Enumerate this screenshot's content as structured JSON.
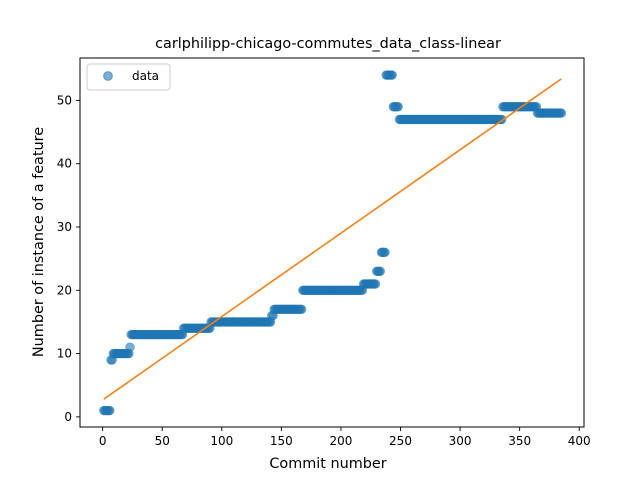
{
  "chart_data": {
    "type": "scatter",
    "title": "carlphilipp-chicago-commutes_data_class-linear",
    "xlabel": "Commit number",
    "ylabel": "Number of instance of a feature",
    "xlim": [
      -19,
      404
    ],
    "ylim": [
      -1.6,
      56.7
    ],
    "xticks": [
      0,
      50,
      100,
      150,
      200,
      250,
      300,
      350,
      400
    ],
    "yticks": [
      0,
      10,
      20,
      30,
      40,
      50
    ],
    "grid": false,
    "legend": {
      "placement": "upper-left",
      "entries": [
        "data"
      ]
    },
    "colors": {
      "data": "#1f77b4",
      "fit": "#ff7f0e"
    },
    "series": [
      {
        "name": "data",
        "kind": "scatter",
        "segments": [
          {
            "x_start": 1,
            "x_end": 6,
            "y": 1
          },
          {
            "x_start": 7,
            "x_end": 8,
            "y": 9
          },
          {
            "x_start": 9,
            "x_end": 22,
            "y": 10
          },
          {
            "x_start": 23,
            "x_end": 23,
            "y": 11
          },
          {
            "x_start": 24,
            "x_end": 67,
            "y": 13
          },
          {
            "x_start": 68,
            "x_end": 90,
            "y": 14
          },
          {
            "x_start": 91,
            "x_end": 141,
            "y": 15
          },
          {
            "x_start": 142,
            "x_end": 143,
            "y": 16
          },
          {
            "x_start": 144,
            "x_end": 167,
            "y": 17
          },
          {
            "x_start": 168,
            "x_end": 218,
            "y": 20
          },
          {
            "x_start": 219,
            "x_end": 229,
            "y": 21
          },
          {
            "x_start": 230,
            "x_end": 233,
            "y": 23
          },
          {
            "x_start": 234,
            "x_end": 237,
            "y": 26
          },
          {
            "x_start": 238,
            "x_end": 243,
            "y": 54
          },
          {
            "x_start": 244,
            "x_end": 248,
            "y": 49
          },
          {
            "x_start": 249,
            "x_end": 335,
            "y": 47
          },
          {
            "x_start": 336,
            "x_end": 364,
            "y": 49
          },
          {
            "x_start": 365,
            "x_end": 385,
            "y": 48
          }
        ]
      },
      {
        "kind": "line",
        "x": [
          1,
          385
        ],
        "y": [
          2.8,
          53.4
        ]
      }
    ]
  }
}
